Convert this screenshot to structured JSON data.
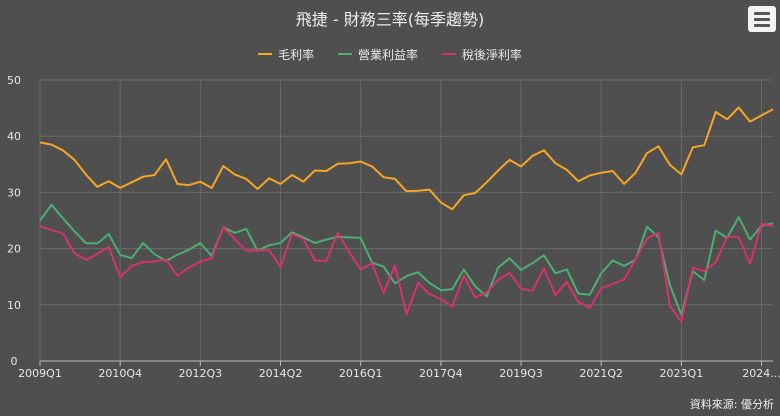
{
  "title": "飛捷 - 財務三率(每季趨勢)",
  "source": "資料來源: 優分析",
  "menu_icon": "hamburger-menu-icon",
  "chart_data": {
    "type": "line",
    "title": "飛捷 - 財務三率(每季趨勢)",
    "grid": true,
    "legend_position": "top-center",
    "ylim": [
      0,
      50
    ],
    "y_ticks": [
      0,
      10,
      20,
      30,
      40,
      50
    ],
    "x_tick_labels": [
      "2009Q1",
      "2010Q4",
      "2012Q3",
      "2014Q2",
      "2016Q1",
      "2017Q4",
      "2019Q3",
      "2021Q2",
      "2023Q1",
      "2024..."
    ],
    "x_tick_indices": [
      0,
      7,
      14,
      21,
      28,
      35,
      42,
      49,
      56,
      63
    ],
    "x": [
      "2009Q1",
      "2009Q2",
      "2009Q3",
      "2009Q4",
      "2010Q1",
      "2010Q2",
      "2010Q3",
      "2010Q4",
      "2011Q1",
      "2011Q2",
      "2011Q3",
      "2011Q4",
      "2012Q1",
      "2012Q2",
      "2012Q3",
      "2012Q4",
      "2013Q1",
      "2013Q2",
      "2013Q3",
      "2013Q4",
      "2014Q1",
      "2014Q2",
      "2014Q3",
      "2014Q4",
      "2015Q1",
      "2015Q2",
      "2015Q3",
      "2015Q4",
      "2016Q1",
      "2016Q2",
      "2016Q3",
      "2016Q4",
      "2017Q1",
      "2017Q2",
      "2017Q3",
      "2017Q4",
      "2018Q1",
      "2018Q2",
      "2018Q3",
      "2018Q4",
      "2019Q1",
      "2019Q2",
      "2019Q3",
      "2019Q4",
      "2020Q1",
      "2020Q2",
      "2020Q3",
      "2020Q4",
      "2021Q1",
      "2021Q2",
      "2021Q3",
      "2021Q4",
      "2022Q1",
      "2022Q2",
      "2022Q3",
      "2022Q4",
      "2023Q1",
      "2023Q2",
      "2023Q3",
      "2023Q4",
      "2024Q1",
      "2024Q2",
      "2024Q3",
      "2024Q4",
      "2025Q1"
    ],
    "series": [
      {
        "name": "毛利率",
        "color": "#f5a623",
        "values": [
          38.9,
          38.5,
          37.5,
          35.8,
          33.2,
          31.0,
          32.0,
          30.8,
          31.8,
          32.8,
          33.1,
          35.9,
          31.5,
          31.3,
          31.9,
          30.8,
          34.7,
          33.2,
          32.4,
          30.6,
          32.5,
          31.5,
          33.1,
          31.9,
          33.9,
          33.8,
          35.1,
          35.2,
          35.5,
          34.6,
          32.7,
          32.4,
          30.2,
          30.3,
          30.5,
          28.2,
          27.0,
          29.5,
          29.9,
          31.8,
          33.9,
          35.8,
          34.6,
          36.5,
          37.5,
          35.2,
          34.0,
          32.0,
          33.0,
          33.5,
          33.8,
          31.5,
          33.5,
          37.0,
          38.2,
          34.9,
          33.2,
          38.0,
          38.4,
          44.3,
          43.0,
          45.1,
          42.6,
          43.7,
          44.8
        ]
      },
      {
        "name": "營業利益率",
        "color": "#4caf6e",
        "values": [
          25.0,
          27.8,
          25.4,
          23.1,
          21.0,
          20.9,
          22.6,
          18.9,
          18.3,
          21.0,
          19.0,
          17.8,
          18.9,
          19.8,
          21.0,
          18.7,
          23.8,
          22.8,
          23.5,
          19.6,
          20.6,
          21.0,
          22.9,
          22.0,
          21.0,
          21.6,
          22.1,
          22.0,
          21.9,
          17.5,
          16.8,
          13.8,
          15.1,
          15.8,
          13.9,
          12.6,
          12.8,
          16.3,
          13.3,
          11.5,
          16.6,
          18.3,
          16.2,
          17.4,
          18.8,
          15.6,
          16.3,
          12.0,
          11.8,
          15.6,
          17.9,
          16.9,
          18.0,
          23.9,
          22.0,
          13.5,
          8.2,
          16.0,
          14.4,
          23.2,
          21.9,
          25.6,
          21.6,
          24.1,
          24.5
        ]
      },
      {
        "name": "稅後淨利率",
        "color": "#d6336c",
        "values": [
          24.0,
          23.3,
          22.7,
          19.2,
          18.0,
          19.0,
          20.3,
          14.9,
          16.9,
          17.6,
          17.7,
          18.1,
          15.2,
          16.6,
          17.7,
          18.3,
          23.8,
          21.7,
          19.6,
          19.7,
          19.7,
          16.8,
          22.6,
          21.7,
          17.9,
          17.8,
          22.8,
          19.4,
          16.3,
          17.4,
          12.1,
          17.0,
          8.3,
          13.9,
          11.9,
          11.0,
          9.7,
          15.2,
          11.3,
          12.2,
          14.4,
          15.7,
          12.9,
          12.5,
          16.5,
          11.7,
          14.1,
          10.5,
          9.5,
          12.9,
          13.7,
          14.5,
          18.1,
          21.8,
          22.8,
          9.8,
          7.0,
          16.6,
          16.0,
          17.6,
          22.1,
          22.1,
          17.3,
          24.4,
          24.0
        ]
      }
    ]
  }
}
